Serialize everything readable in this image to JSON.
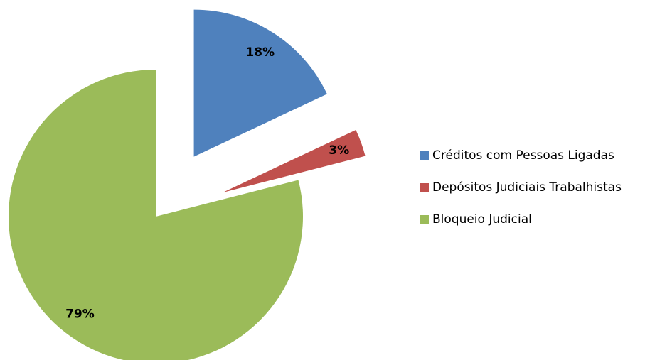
{
  "chart_data": {
    "type": "pie",
    "categories": [
      "Créditos com Pessoas Ligadas",
      "Depósitos Judiciais Trabalhistas",
      "Bloqueio Judicial"
    ],
    "values": [
      18,
      3,
      79
    ],
    "value_labels": [
      "18%",
      "3%",
      "79%"
    ],
    "colors": [
      "#4f81bd",
      "#c0504d",
      "#9bbb59"
    ],
    "exploded": [
      true,
      true,
      false
    ],
    "legend": "right"
  }
}
